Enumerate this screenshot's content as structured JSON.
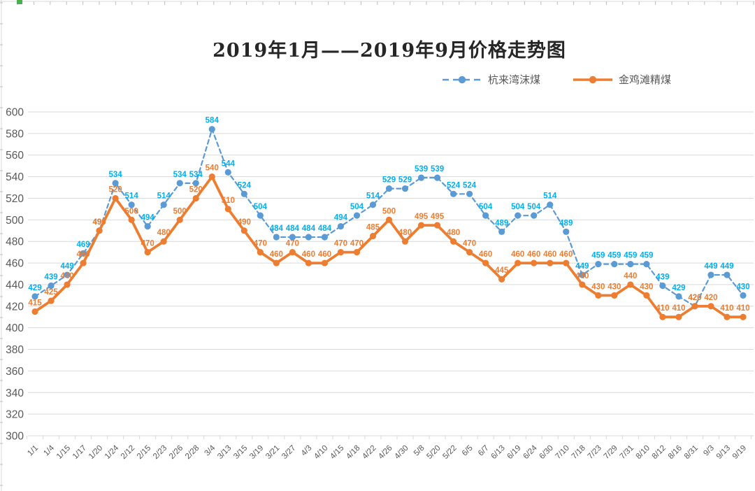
{
  "chart_data": {
    "type": "line",
    "title": "2019年1月——2019年9月价格走势图",
    "categories": [
      "1/1",
      "1/4",
      "1/15",
      "1/17",
      "1/20",
      "1/24",
      "2/12",
      "2/15",
      "2/23",
      "2/26",
      "2/28",
      "3/4",
      "3/13",
      "3/15",
      "3/19",
      "3/21",
      "3/27",
      "4/3",
      "4/10",
      "4/15",
      "4/18",
      "4/22",
      "4/26",
      "4/30",
      "5/8",
      "5/20",
      "5/22",
      "6/5",
      "6/7",
      "6/13",
      "6/19",
      "6/24",
      "6/30",
      "7/10",
      "7/18",
      "7/23",
      "7/29",
      "7/31",
      "8/10",
      "8/12",
      "8/16",
      "8/31",
      "9/3",
      "9/13",
      "9/19"
    ],
    "series": [
      {
        "name": "杭来湾沫煤",
        "values": [
          429,
          439,
          449,
          469,
          490,
          534,
          514,
          494,
          514,
          534,
          534,
          584,
          544,
          524,
          504,
          484,
          484,
          484,
          484,
          494,
          504,
          514,
          529,
          529,
          539,
          539,
          524,
          524,
          504,
          489,
          504,
          504,
          514,
          489,
          449,
          459,
          459,
          459,
          459,
          439,
          429,
          420,
          449,
          449,
          430
        ],
        "line_color": "#5B9BD5",
        "label_color": "#00B0F0",
        "line_style": "dashed",
        "marker": "circle"
      },
      {
        "name": "金鸡滩精煤",
        "values": [
          415,
          425,
          440,
          460,
          490,
          520,
          500,
          470,
          480,
          500,
          520,
          540,
          510,
          490,
          470,
          460,
          470,
          460,
          460,
          470,
          470,
          485,
          500,
          480,
          495,
          495,
          480,
          470,
          460,
          445,
          460,
          460,
          460,
          460,
          440,
          430,
          430,
          440,
          430,
          410,
          410,
          420,
          420,
          410,
          410
        ],
        "line_color": "#ED7D31",
        "label_color": "#ED7D31",
        "line_style": "solid",
        "marker": "circle"
      }
    ],
    "y_axis": {
      "min": 300,
      "max": 600,
      "step": 20
    },
    "x_label_rotation": -45,
    "grid": "horizontal",
    "legend_position": "top-right",
    "data_labels": true
  },
  "theme": {
    "background": "#FFFFFF",
    "gridline_color": "#D9D9D9",
    "axis_text_color": "#595959",
    "title_color": "#262626",
    "edge_line_color": "#D9D9D9",
    "edge_tick_color": "#BFBFBF",
    "selection_mark_color": "#4BAE4F"
  }
}
